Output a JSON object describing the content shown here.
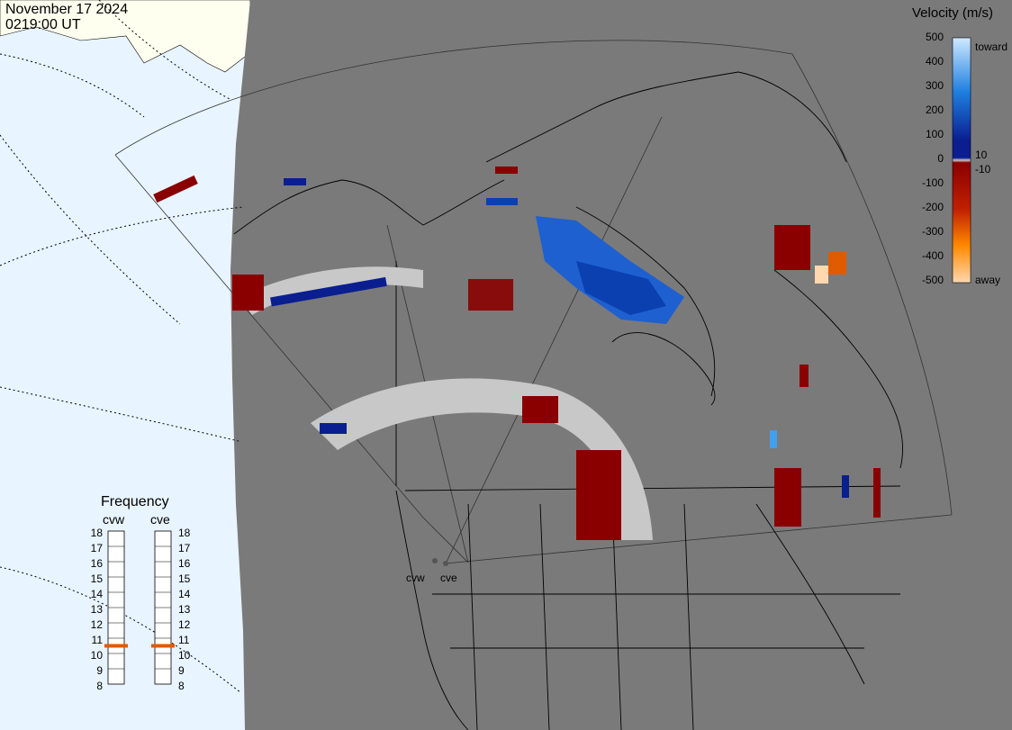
{
  "header": {
    "date": "November 17 2024",
    "time": "0219:00 UT"
  },
  "velocity_legend": {
    "title": "Velocity (m/s)",
    "ticks": [
      "500",
      "400",
      "300",
      "200",
      "100",
      "0",
      "-100",
      "-200",
      "-300",
      "-400",
      "-500"
    ],
    "toward_label": "toward",
    "away_label": "away",
    "small_pos": "10",
    "small_neg": "-10",
    "colors": {
      "toward_max": "#cfe9ff",
      "toward_mid": "#1f80e0",
      "toward_low": "#0a1e90",
      "near_zero": "#c8c8c8",
      "away_low": "#8a0000",
      "away_mid": "#e05a00",
      "away_max": "#ffd8b0"
    }
  },
  "frequency_legend": {
    "title": "Frequency",
    "radars": [
      "cvw",
      "cve"
    ],
    "scale": [
      "18",
      "17",
      "16",
      "15",
      "14",
      "13",
      "12",
      "11",
      "10",
      "9",
      "8"
    ],
    "cvw_freq_mhz": 11,
    "cve_freq_mhz": 11
  },
  "radar_sites": [
    {
      "code": "cvw"
    },
    {
      "code": "cve"
    }
  ],
  "colors": {
    "ocean": "#e8f4ff",
    "land_out": "#fffff0",
    "night": "#7a7a7a",
    "indicator": "#e05a00"
  }
}
